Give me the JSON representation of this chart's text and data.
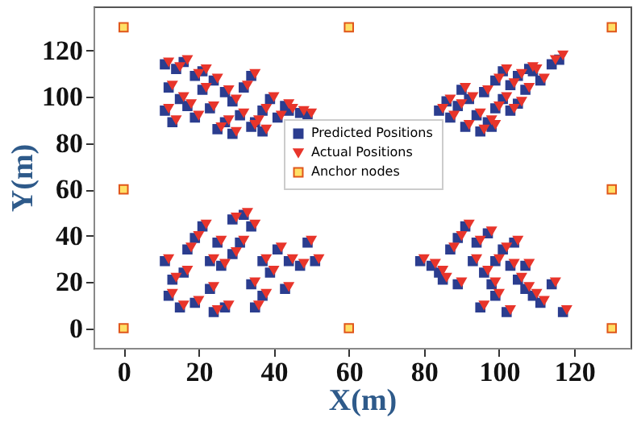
{
  "chart_data": {
    "type": "scatter",
    "xlabel": "X(m)",
    "ylabel": "Y(m)",
    "xlim": [
      -8,
      135
    ],
    "ylim": [
      -8.5,
      139
    ],
    "xticks": [
      0,
      20,
      40,
      60,
      80,
      100,
      120
    ],
    "yticks": [
      0,
      20,
      40,
      60,
      80,
      100,
      120
    ],
    "grid": false,
    "legend": "center",
    "series": [
      {
        "name": "Predicted Positions",
        "color": "#2b3d8f",
        "marker": "square",
        "x": [
          11,
          14,
          16,
          19,
          12,
          15,
          11,
          17,
          21,
          24,
          27,
          23,
          29,
          32,
          34,
          31,
          27,
          25,
          34,
          37,
          39,
          41,
          44,
          47,
          49,
          37,
          29,
          19,
          13,
          21,
          35,
          43,
          84,
          87,
          89,
          91,
          94,
          92,
          96,
          99,
          97,
          101,
          103,
          99,
          105,
          107,
          109,
          111,
          114,
          116,
          103,
          95,
          86,
          90,
          105,
          108,
          101,
          98,
          11,
          13,
          12,
          16,
          17,
          19,
          21,
          15,
          19,
          23,
          24,
          27,
          26,
          29,
          29,
          32,
          34,
          31,
          37,
          34,
          35,
          39,
          41,
          44,
          47,
          49,
          51,
          43,
          37,
          23,
          25,
          79,
          82,
          84,
          87,
          89,
          91,
          94,
          97,
          93,
          96,
          99,
          101,
          103,
          105,
          107,
          109,
          111,
          114,
          117,
          99,
          95,
          102,
          89,
          85,
          104,
          98,
          107
        ],
        "values": [
          114,
          112,
          115,
          109,
          104,
          99,
          94,
          96,
          103,
          107,
          102,
          95,
          98,
          104,
          109,
          92,
          89,
          86,
          87,
          94,
          99,
          91,
          94,
          93,
          92,
          85,
          84,
          91,
          89,
          111,
          89,
          96,
          94,
          91,
          96,
          87,
          92,
          99,
          102,
          95,
          89,
          99,
          105,
          107,
          109,
          103,
          111,
          107,
          114,
          116,
          94,
          85,
          98,
          103,
          97,
          112,
          111,
          87,
          29,
          21,
          14,
          24,
          34,
          39,
          44,
          9,
          11,
          17,
          7,
          9,
          27,
          32,
          47,
          49,
          44,
          37,
          29,
          19,
          9,
          24,
          34,
          29,
          27,
          37,
          29,
          17,
          14,
          29,
          37,
          29,
          27,
          24,
          34,
          39,
          44,
          37,
          41,
          29,
          24,
          29,
          34,
          27,
          21,
          17,
          14,
          11,
          19,
          7,
          14,
          9,
          7,
          19,
          21,
          37,
          19,
          27
        ]
      },
      {
        "name": "Actual Positions",
        "color": "#e8352b",
        "marker": "triangle",
        "x": [
          12,
          15,
          17,
          20,
          13,
          16,
          12,
          18,
          22,
          25,
          28,
          24,
          30,
          33,
          35,
          32,
          28,
          26,
          35,
          38,
          40,
          42,
          45,
          48,
          50,
          38,
          30,
          20,
          14,
          22,
          36,
          44,
          85,
          88,
          90,
          92,
          95,
          93,
          97,
          100,
          98,
          102,
          104,
          100,
          106,
          108,
          110,
          112,
          115,
          117,
          104,
          96,
          87,
          91,
          106,
          109,
          102,
          99,
          12,
          14,
          13,
          17,
          18,
          20,
          22,
          16,
          20,
          24,
          25,
          28,
          27,
          30,
          30,
          33,
          35,
          32,
          38,
          35,
          36,
          40,
          42,
          45,
          48,
          50,
          52,
          44,
          38,
          24,
          26,
          80,
          83,
          85,
          88,
          90,
          92,
          95,
          98,
          94,
          97,
          100,
          102,
          104,
          106,
          108,
          110,
          112,
          115,
          118,
          100,
          96,
          103,
          90,
          86,
          105,
          99,
          108
        ],
        "values": [
          115,
          113,
          116,
          110,
          105,
          100,
          95,
          97,
          104,
          108,
          103,
          96,
          99,
          105,
          110,
          93,
          90,
          87,
          88,
          95,
          100,
          92,
          95,
          94,
          93,
          86,
          85,
          92,
          90,
          112,
          90,
          97,
          95,
          92,
          97,
          88,
          93,
          100,
          103,
          96,
          90,
          100,
          106,
          108,
          110,
          104,
          112,
          108,
          116,
          118,
          95,
          86,
          99,
          104,
          98,
          113,
          112,
          88,
          30,
          22,
          15,
          25,
          35,
          40,
          45,
          10,
          12,
          18,
          8,
          10,
          28,
          33,
          48,
          50,
          45,
          38,
          30,
          20,
          10,
          25,
          35,
          30,
          28,
          38,
          30,
          18,
          15,
          30,
          38,
          30,
          28,
          25,
          35,
          40,
          45,
          38,
          42,
          30,
          25,
          30,
          35,
          28,
          22,
          18,
          15,
          12,
          20,
          8,
          15,
          10,
          8,
          20,
          22,
          38,
          20,
          28
        ]
      },
      {
        "name": "Anchor nodes",
        "color": "#ffe066",
        "marker": "square",
        "x": [
          0,
          60,
          130,
          0,
          130,
          0,
          60,
          130
        ],
        "values": [
          0,
          0,
          0,
          60,
          60,
          130,
          130,
          130
        ]
      }
    ]
  }
}
